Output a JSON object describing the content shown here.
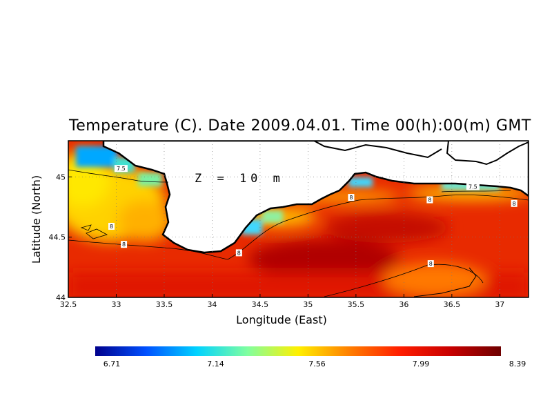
{
  "title": "Temperature (C). Date 2009.04.01. Time 00(h):00(m) GMT",
  "depth_label": "Z = 10 m",
  "chart_data": {
    "type": "heatmap",
    "variable": "Temperature (C)",
    "date": "2009.04.01",
    "time": "00(h):00(m) GMT",
    "depth": "10 m",
    "xlabel": "Longitude (East)",
    "ylabel": "Latitude (North)",
    "xlim": [
      32.5,
      37.3
    ],
    "ylim": [
      44.0,
      45.3
    ],
    "x_ticks": [
      "32.5",
      "33",
      "33.5",
      "34",
      "34.5",
      "35",
      "35.5",
      "36",
      "36.5",
      "37"
    ],
    "y_ticks": [
      "44",
      "44.5",
      "45"
    ],
    "colorbar": {
      "min": 6.71,
      "max": 8.39,
      "tick_labels": [
        "6.71",
        "7.14",
        "7.56",
        "7.99",
        "8.39"
      ],
      "colors": [
        "#00008c",
        "#0050ff",
        "#00d2ff",
        "#80ffa0",
        "#fff000",
        "#ff8000",
        "#ff1e00",
        "#c80000",
        "#6e0000"
      ]
    },
    "contour_labels": [
      {
        "text": "7.5",
        "lon": 33.05,
        "lat": 45.07
      },
      {
        "text": "8",
        "lon": 32.95,
        "lat": 44.59
      },
      {
        "text": "8",
        "lon": 33.08,
        "lat": 44.44
      },
      {
        "text": "8",
        "lon": 34.28,
        "lat": 44.37
      },
      {
        "text": "8",
        "lon": 35.45,
        "lat": 44.83
      },
      {
        "text": "8",
        "lon": 36.27,
        "lat": 44.81
      },
      {
        "text": "7.5",
        "lon": 36.72,
        "lat": 44.92
      },
      {
        "text": "8",
        "lon": 37.15,
        "lat": 44.78
      },
      {
        "text": "8",
        "lon": 36.28,
        "lat": 44.28
      }
    ],
    "grid": true
  }
}
